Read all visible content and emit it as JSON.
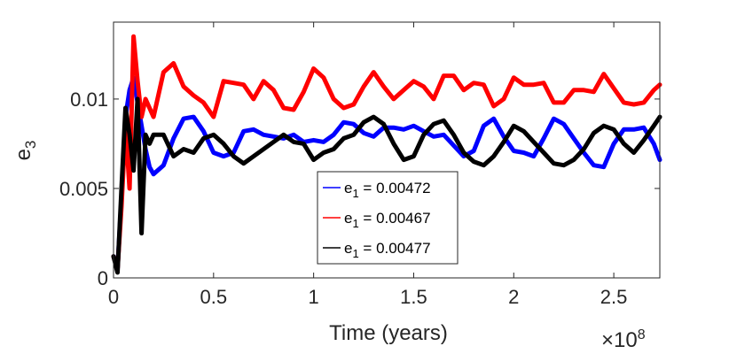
{
  "chart_data": {
    "type": "line",
    "title": "",
    "xlabel": "Time (years)",
    "ylabel": "e",
    "ylabel_subscript": "3",
    "x_multiplier": "×10",
    "x_multiplier_exp": "8",
    "xlim": [
      0,
      2.73
    ],
    "ylim": [
      0,
      0.0143
    ],
    "xticks": [
      0,
      0.5,
      1,
      1.5,
      2,
      2.5
    ],
    "xtick_labels": [
      "0",
      "0.5",
      "1",
      "1.5",
      "2",
      "2.5"
    ],
    "yticks": [
      0,
      0.005,
      0.01
    ],
    "ytick_labels": [
      "0",
      "0.005",
      "0.01"
    ],
    "grid": false,
    "legend_position": "center-bottom",
    "series": [
      {
        "name": "blue",
        "legend_prefix": "e",
        "legend_sub": "1",
        "legend_value": " = 0.00472",
        "color": "#0000ff",
        "x": [
          0.02,
          0.04,
          0.06,
          0.08,
          0.1,
          0.12,
          0.14,
          0.16,
          0.18,
          0.2,
          0.25,
          0.3,
          0.35,
          0.4,
          0.45,
          0.5,
          0.55,
          0.6,
          0.65,
          0.7,
          0.75,
          0.8,
          0.85,
          0.9,
          0.95,
          1.0,
          1.05,
          1.1,
          1.15,
          1.2,
          1.25,
          1.3,
          1.35,
          1.4,
          1.45,
          1.5,
          1.55,
          1.6,
          1.65,
          1.7,
          1.75,
          1.8,
          1.85,
          1.9,
          1.95,
          2.0,
          2.05,
          2.1,
          2.15,
          2.2,
          2.25,
          2.3,
          2.35,
          2.4,
          2.45,
          2.5,
          2.55,
          2.6,
          2.65,
          2.7,
          2.73
        ],
        "y": [
          0.0005,
          0.0045,
          0.009,
          0.0105,
          0.0112,
          0.0098,
          0.0085,
          0.0072,
          0.0062,
          0.0058,
          0.0063,
          0.0078,
          0.0089,
          0.009,
          0.0082,
          0.007,
          0.0068,
          0.007,
          0.0082,
          0.0083,
          0.008,
          0.0079,
          0.0078,
          0.008,
          0.0076,
          0.0077,
          0.0076,
          0.008,
          0.0087,
          0.0086,
          0.0081,
          0.0079,
          0.0084,
          0.0084,
          0.0083,
          0.0085,
          0.0082,
          0.0079,
          0.008,
          0.0074,
          0.0068,
          0.0071,
          0.0085,
          0.0089,
          0.0079,
          0.0071,
          0.007,
          0.0068,
          0.0078,
          0.0089,
          0.0086,
          0.0078,
          0.007,
          0.0063,
          0.0062,
          0.0075,
          0.0083,
          0.0083,
          0.0084,
          0.0075,
          0.0066
        ]
      },
      {
        "name": "red",
        "legend_prefix": "e",
        "legend_sub": "1",
        "legend_value": " = 0.00467",
        "color": "#ff0000",
        "x": [
          0.02,
          0.04,
          0.06,
          0.08,
          0.1,
          0.12,
          0.14,
          0.16,
          0.18,
          0.2,
          0.25,
          0.3,
          0.35,
          0.4,
          0.45,
          0.5,
          0.55,
          0.6,
          0.65,
          0.7,
          0.75,
          0.8,
          0.85,
          0.9,
          0.95,
          1.0,
          1.05,
          1.1,
          1.15,
          1.2,
          1.25,
          1.3,
          1.35,
          1.4,
          1.45,
          1.5,
          1.55,
          1.6,
          1.65,
          1.7,
          1.75,
          1.8,
          1.85,
          1.9,
          1.95,
          2.0,
          2.05,
          2.1,
          2.15,
          2.2,
          2.25,
          2.3,
          2.35,
          2.4,
          2.45,
          2.5,
          2.55,
          2.6,
          2.65,
          2.7,
          2.73
        ],
        "y": [
          0.0005,
          0.004,
          0.0085,
          0.005,
          0.0135,
          0.011,
          0.009,
          0.01,
          0.0095,
          0.009,
          0.0115,
          0.012,
          0.0107,
          0.0102,
          0.0098,
          0.009,
          0.011,
          0.0109,
          0.0108,
          0.01,
          0.011,
          0.0105,
          0.0095,
          0.0094,
          0.0104,
          0.0117,
          0.0112,
          0.01,
          0.0095,
          0.0097,
          0.0107,
          0.0115,
          0.0107,
          0.01,
          0.0105,
          0.011,
          0.0107,
          0.01,
          0.0113,
          0.0113,
          0.0105,
          0.0109,
          0.0108,
          0.0096,
          0.01,
          0.0112,
          0.0108,
          0.0108,
          0.0109,
          0.0098,
          0.0098,
          0.0105,
          0.0105,
          0.0104,
          0.0114,
          0.0106,
          0.0098,
          0.0097,
          0.0098,
          0.0105,
          0.0108
        ]
      },
      {
        "name": "black",
        "legend_prefix": "e",
        "legend_sub": "1",
        "legend_value": " = 0.00477",
        "color": "#000000",
        "x": [
          0.02,
          0.04,
          0.06,
          0.08,
          0.1,
          0.12,
          0.14,
          0.16,
          0.18,
          0.2,
          0.25,
          0.3,
          0.35,
          0.4,
          0.45,
          0.5,
          0.55,
          0.6,
          0.65,
          0.7,
          0.75,
          0.8,
          0.85,
          0.9,
          0.95,
          1.0,
          1.05,
          1.1,
          1.15,
          1.2,
          1.25,
          1.3,
          1.35,
          1.4,
          1.45,
          1.5,
          1.55,
          1.6,
          1.65,
          1.7,
          1.75,
          1.8,
          1.85,
          1.9,
          1.95,
          2.0,
          2.05,
          2.1,
          2.15,
          2.2,
          2.25,
          2.3,
          2.35,
          2.4,
          2.45,
          2.5,
          2.55,
          2.6,
          2.65,
          2.7,
          2.73
        ],
        "y": [
          0.0003,
          0.005,
          0.0095,
          0.008,
          0.006,
          0.01,
          0.0025,
          0.008,
          0.0075,
          0.008,
          0.008,
          0.0068,
          0.0072,
          0.007,
          0.0078,
          0.008,
          0.0075,
          0.0068,
          0.0064,
          0.0068,
          0.0072,
          0.0076,
          0.008,
          0.0076,
          0.0075,
          0.0066,
          0.007,
          0.0072,
          0.0078,
          0.008,
          0.0087,
          0.009,
          0.0086,
          0.0075,
          0.0066,
          0.0068,
          0.008,
          0.0086,
          0.0088,
          0.008,
          0.007,
          0.0065,
          0.0063,
          0.0068,
          0.0076,
          0.0085,
          0.0082,
          0.0076,
          0.007,
          0.0064,
          0.0063,
          0.0066,
          0.0072,
          0.0081,
          0.0085,
          0.0083,
          0.0075,
          0.007,
          0.0077,
          0.0085,
          0.009
        ]
      }
    ]
  }
}
